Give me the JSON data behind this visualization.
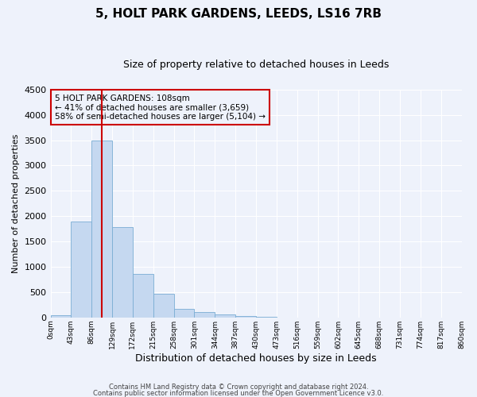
{
  "title": "5, HOLT PARK GARDENS, LEEDS, LS16 7RB",
  "subtitle": "Size of property relative to detached houses in Leeds",
  "xlabel": "Distribution of detached houses by size in Leeds",
  "ylabel": "Number of detached properties",
  "bin_labels": [
    "0sqm",
    "43sqm",
    "86sqm",
    "129sqm",
    "172sqm",
    "215sqm",
    "258sqm",
    "301sqm",
    "344sqm",
    "387sqm",
    "430sqm",
    "473sqm",
    "516sqm",
    "559sqm",
    "602sqm",
    "645sqm",
    "688sqm",
    "731sqm",
    "774sqm",
    "817sqm",
    "860sqm"
  ],
  "bar_values": [
    50,
    1900,
    3500,
    1780,
    860,
    460,
    170,
    100,
    55,
    30,
    20,
    0,
    0,
    0,
    0,
    0,
    0,
    0,
    0,
    0
  ],
  "bar_color": "#c5d8f0",
  "bar_edge_color": "#7aadd4",
  "vline_x": 108,
  "vline_color": "#cc0000",
  "annotation_title": "5 HOLT PARK GARDENS: 108sqm",
  "annotation_line1": "← 41% of detached houses are smaller (3,659)",
  "annotation_line2": "58% of semi-detached houses are larger (5,104) →",
  "annotation_box_color": "#cc0000",
  "ylim": [
    0,
    4500
  ],
  "yticks": [
    0,
    500,
    1000,
    1500,
    2000,
    2500,
    3000,
    3500,
    4000,
    4500
  ],
  "footer1": "Contains HM Land Registry data © Crown copyright and database right 2024.",
  "footer2": "Contains public sector information licensed under the Open Government Licence v3.0.",
  "background_color": "#eef2fb",
  "grid_color": "#ffffff",
  "bin_width": 43
}
